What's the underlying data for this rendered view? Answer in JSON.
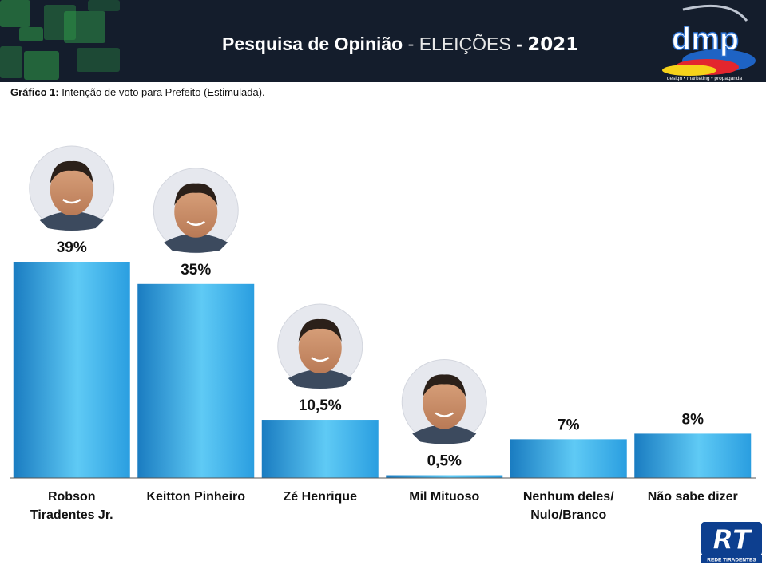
{
  "header": {
    "title_bold": "Pesquisa de Opinião",
    "title_sep": " - ",
    "title_thin": "ELEIÇÕES",
    "title_dash": " - ",
    "year": "2021",
    "logo_text": "dmp",
    "logo_tagline": "design • marketing • propaganda"
  },
  "caption": {
    "label": "Gráfico 1:",
    "text": " Intenção de voto para Prefeito (Estimulada)."
  },
  "chart_data": {
    "type": "bar",
    "title": "Intenção de voto para Prefeito (Estimulada)",
    "categories": [
      [
        "Robson",
        "Tiradentes Jr."
      ],
      [
        "Keitton Pinheiro"
      ],
      [
        "Zé Henrique"
      ],
      [
        "Mil Mituoso"
      ],
      [
        "Nenhum deles/",
        "Nulo/Branco"
      ],
      [
        "Não sabe dizer"
      ]
    ],
    "values": [
      39,
      35,
      10.5,
      0.5,
      7,
      8
    ],
    "labels": [
      "39%",
      "35%",
      "10,5%",
      "0,5%",
      "7%",
      "8%"
    ],
    "has_photo": [
      true,
      true,
      true,
      true,
      false,
      false
    ],
    "ylim": [
      0,
      40
    ],
    "grid": false,
    "bar_color": "#2aa3e0"
  },
  "footer": {
    "logo_text": "RT",
    "logo_caption": "REDE TIRADENTES"
  },
  "colors": {
    "header_bg": "#141d2c",
    "bar_light": "#5fcaf5",
    "bar_dark": "#1a7cc1"
  }
}
